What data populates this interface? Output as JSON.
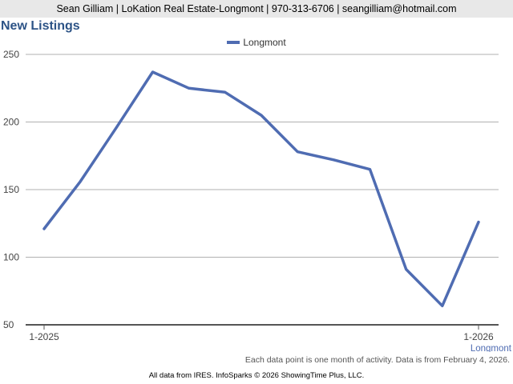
{
  "header": {
    "text": "Sean Gilliam | LoKation Real Estate-Longmont | 970-313-6706 | seangilliam@hotmail.com"
  },
  "footer": {
    "note": "Each data point is one month of activity. Data is from February 4, 2026.",
    "credit": "All data from IRES. InfoSparks © 2026 ShowingTime Plus, LLC."
  },
  "colors": {
    "series": "#4f6cb2",
    "title": "#2c5386",
    "grid": "#b0b0b0",
    "axis": "#555555"
  },
  "chart_data": {
    "type": "line",
    "title": "New Listings",
    "x": [
      "2025-01",
      "2025-02",
      "2025-03",
      "2025-04",
      "2025-05",
      "2025-06",
      "2025-07",
      "2025-08",
      "2025-09",
      "2025-10",
      "2025-11",
      "2025-12",
      "2026-01"
    ],
    "series": [
      {
        "name": "Longmont",
        "values": [
          121,
          156,
          196,
          237,
          225,
          222,
          205,
          178,
          172,
          165,
          91,
          64,
          126
        ]
      }
    ],
    "ylim": [
      50,
      250
    ],
    "yticks": [
      50,
      100,
      150,
      200,
      250
    ],
    "xticks": [
      {
        "index": 0,
        "label": "1-2025"
      },
      {
        "index": 12,
        "label": "1-2026"
      }
    ],
    "end_label": "Longmont",
    "grid": true,
    "legend": "top-center"
  }
}
